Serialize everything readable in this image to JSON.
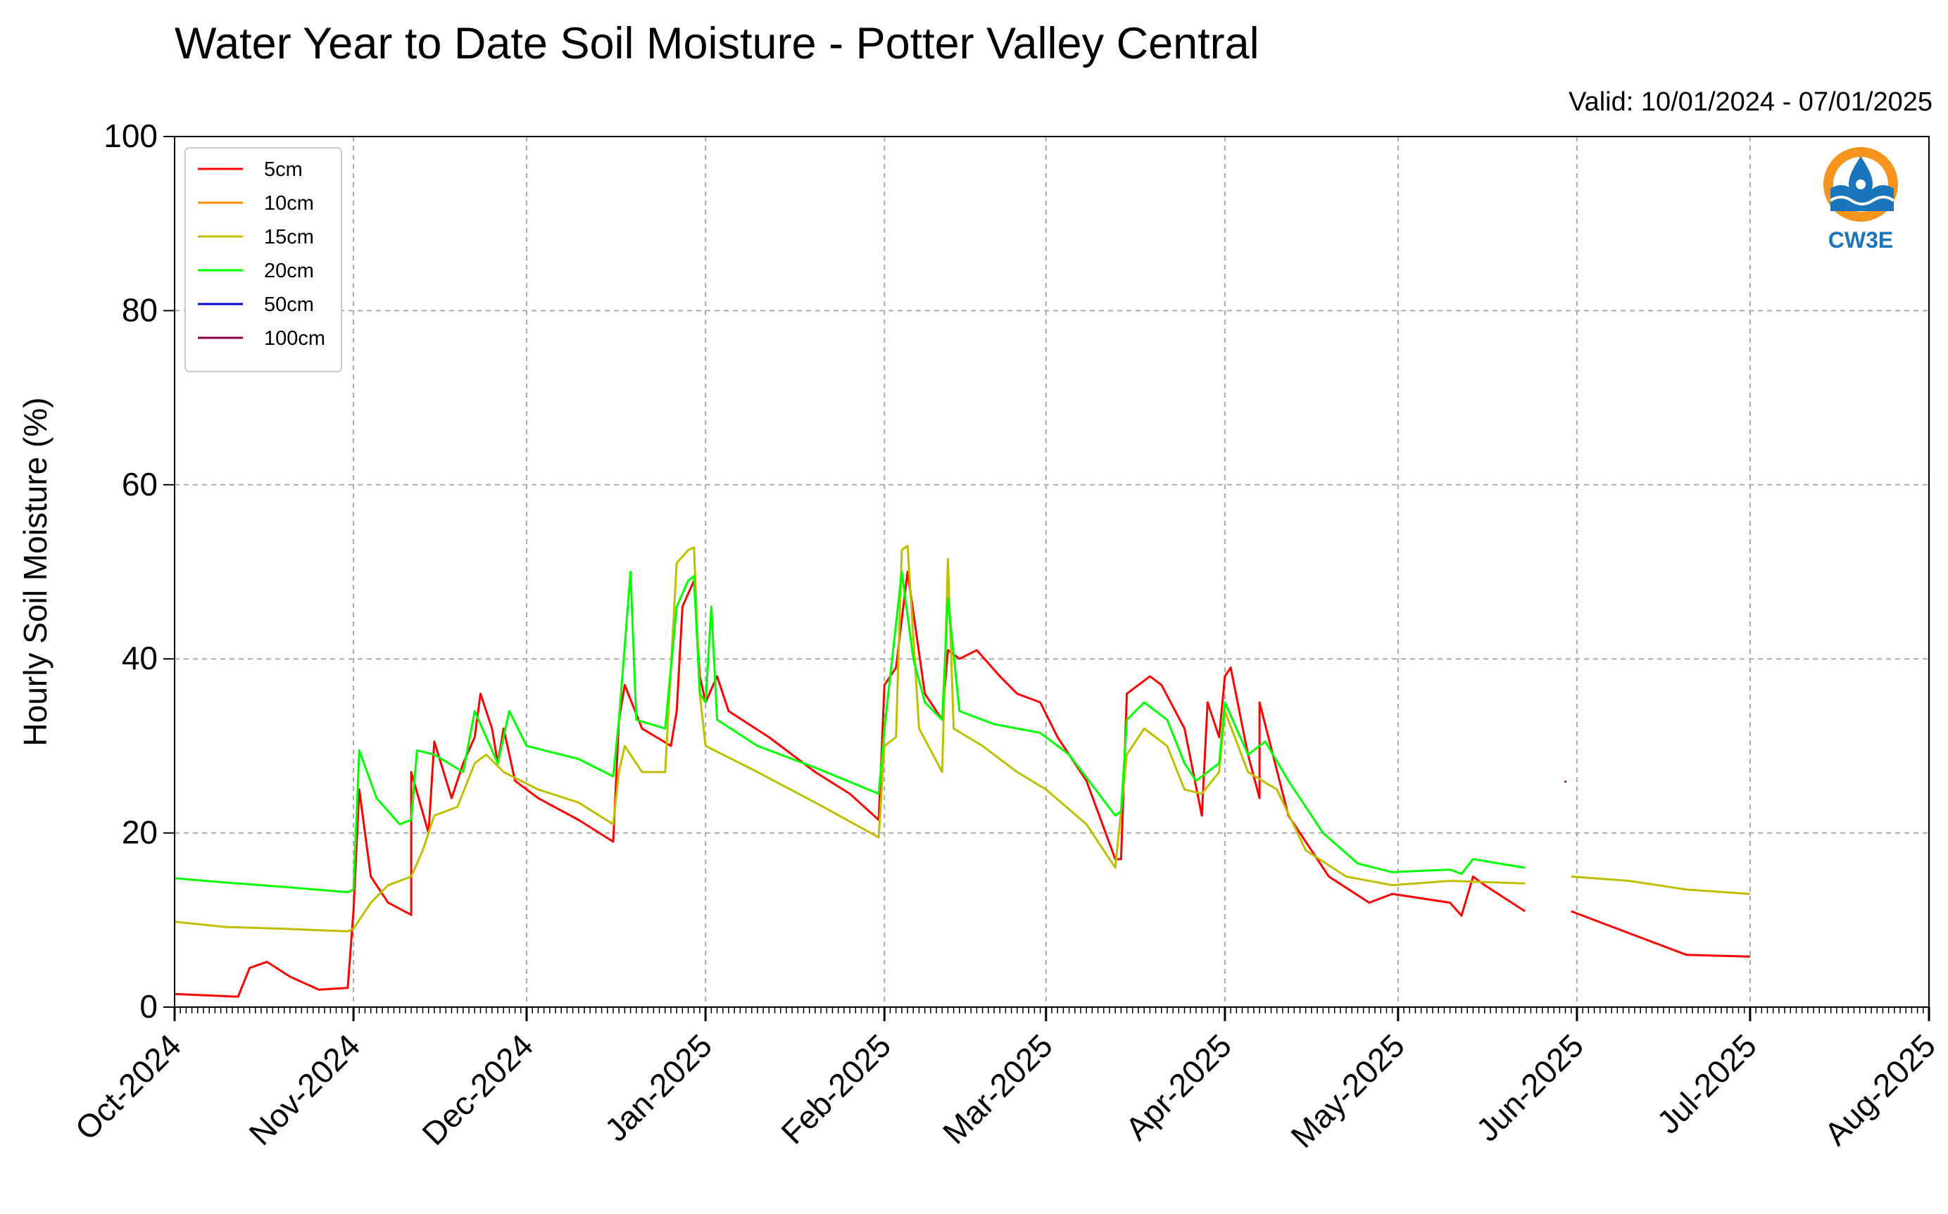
{
  "chart_data": {
    "type": "line",
    "title": "Water Year to Date Soil Moisture - Potter Valley Central",
    "subtitle": "Valid: 10/01/2024 - 07/01/2025",
    "xlabel": "",
    "ylabel": "Hourly Soil Moisture (%)",
    "ylim": [
      0,
      100
    ],
    "yticks": [
      0,
      20,
      40,
      60,
      80,
      100
    ],
    "xlim": [
      "2024-10-01",
      "2025-08-01"
    ],
    "xticks": [
      {
        "date": "2024-10-01",
        "label": "Oct-2024"
      },
      {
        "date": "2024-11-01",
        "label": "Nov-2024"
      },
      {
        "date": "2024-12-01",
        "label": "Dec-2024"
      },
      {
        "date": "2025-01-01",
        "label": "Jan-2025"
      },
      {
        "date": "2025-02-01",
        "label": "Feb-2025"
      },
      {
        "date": "2025-03-01",
        "label": "Mar-2025"
      },
      {
        "date": "2025-04-01",
        "label": "Apr-2025"
      },
      {
        "date": "2025-05-01",
        "label": "May-2025"
      },
      {
        "date": "2025-06-01",
        "label": "Jun-2025"
      },
      {
        "date": "2025-07-01",
        "label": "Jul-2025"
      },
      {
        "date": "2025-08-01",
        "label": "Aug-2025"
      }
    ],
    "grid": true,
    "legend_position": "top-left",
    "series": [
      {
        "name": "5cm",
        "color": "#ff0000",
        "points": [
          [
            "2024-10-01",
            1.5
          ],
          [
            "2024-10-12",
            1.2
          ],
          [
            "2024-10-14",
            4.5
          ],
          [
            "2024-10-17",
            5.2
          ],
          [
            "2024-10-21",
            3.5
          ],
          [
            "2024-10-26",
            2.0
          ],
          [
            "2024-10-31",
            2.2
          ],
          [
            "2024-11-01",
            11.0
          ],
          [
            "2024-11-02",
            25.0
          ],
          [
            "2024-11-04",
            15.0
          ],
          [
            "2024-11-07",
            12.0
          ],
          [
            "2024-11-11",
            10.6
          ],
          [
            "2024-11-11",
            27.0
          ],
          [
            "2024-11-14",
            20.0
          ],
          [
            "2024-11-15",
            30.5
          ],
          [
            "2024-11-18",
            24.0
          ],
          [
            "2024-11-20",
            28.0
          ],
          [
            "2024-11-22",
            31.0
          ],
          [
            "2024-11-23",
            36.0
          ],
          [
            "2024-11-25",
            32.0
          ],
          [
            "2024-11-26",
            28.0
          ],
          [
            "2024-11-27",
            32.0
          ],
          [
            "2024-11-29",
            26.0
          ],
          [
            "2024-12-03",
            24.0
          ],
          [
            "2024-12-10",
            21.5
          ],
          [
            "2024-12-16",
            19.0
          ],
          [
            "2024-12-17",
            33.0
          ],
          [
            "2024-12-18",
            37.0
          ],
          [
            "2024-12-21",
            32.0
          ],
          [
            "2024-12-26",
            30.0
          ],
          [
            "2024-12-27",
            34.0
          ],
          [
            "2024-12-28",
            46.0
          ],
          [
            "2024-12-30",
            49.0
          ],
          [
            "2024-12-31",
            38.0
          ],
          [
            "2025-01-01",
            35.0
          ],
          [
            "2025-01-03",
            38.0
          ],
          [
            "2025-01-05",
            34.0
          ],
          [
            "2025-01-12",
            31.0
          ],
          [
            "2025-01-20",
            27.0
          ],
          [
            "2025-01-26",
            24.5
          ],
          [
            "2025-01-31",
            21.5
          ],
          [
            "2025-02-01",
            37.0
          ],
          [
            "2025-02-03",
            39.0
          ],
          [
            "2025-02-05",
            50.0
          ],
          [
            "2025-02-08",
            36.0
          ],
          [
            "2025-02-11",
            33.0
          ],
          [
            "2025-02-12",
            41.0
          ],
          [
            "2025-02-14",
            40.0
          ],
          [
            "2025-02-17",
            41.0
          ],
          [
            "2025-02-21",
            38.0
          ],
          [
            "2025-02-24",
            36.0
          ],
          [
            "2025-02-28",
            35.0
          ],
          [
            "2025-03-03",
            31.0
          ],
          [
            "2025-03-08",
            26.0
          ],
          [
            "2025-03-13",
            17.0
          ],
          [
            "2025-03-14",
            17.0
          ],
          [
            "2025-03-15",
            36.0
          ],
          [
            "2025-03-17",
            37.0
          ],
          [
            "2025-03-19",
            38.0
          ],
          [
            "2025-03-21",
            37.0
          ],
          [
            "2025-03-25",
            32.0
          ],
          [
            "2025-03-28",
            22.0
          ],
          [
            "2025-03-29",
            35.0
          ],
          [
            "2025-03-31",
            31.0
          ],
          [
            "2025-04-01",
            38.0
          ],
          [
            "2025-04-02",
            39.0
          ],
          [
            "2025-04-05",
            29.0
          ],
          [
            "2025-04-07",
            24.0
          ],
          [
            "2025-04-07",
            35.0
          ],
          [
            "2025-04-12",
            22.0
          ],
          [
            "2025-04-19",
            15.0
          ],
          [
            "2025-04-26",
            12.0
          ],
          [
            "2025-04-30",
            13.0
          ],
          [
            "2025-05-10",
            12.0
          ],
          [
            "2025-05-12",
            10.5
          ],
          [
            "2025-05-14",
            15.0
          ],
          [
            "2025-05-16",
            14.0
          ],
          [
            "2025-05-23",
            11.0
          ],
          null,
          [
            "2025-05-31",
            11.0
          ],
          [
            "2025-06-10",
            8.5
          ],
          [
            "2025-06-20",
            6.0
          ],
          [
            "2025-07-01",
            5.8
          ]
        ]
      },
      {
        "name": "10cm",
        "color": "#ff8c00",
        "points": []
      },
      {
        "name": "15cm",
        "color": "#bfbf00",
        "points": [
          [
            "2024-10-01",
            9.8
          ],
          [
            "2024-10-10",
            9.2
          ],
          [
            "2024-10-20",
            9.0
          ],
          [
            "2024-10-31",
            8.7
          ],
          [
            "2024-11-01",
            9.0
          ],
          [
            "2024-11-04",
            12.0
          ],
          [
            "2024-11-07",
            14.0
          ],
          [
            "2024-11-11",
            15.0
          ],
          [
            "2024-11-13",
            18.0
          ],
          [
            "2024-11-15",
            22.0
          ],
          [
            "2024-11-19",
            23.0
          ],
          [
            "2024-11-22",
            28.0
          ],
          [
            "2024-11-24",
            29.0
          ],
          [
            "2024-11-27",
            27.0
          ],
          [
            "2024-12-03",
            25.0
          ],
          [
            "2024-12-10",
            23.5
          ],
          [
            "2024-12-16",
            21.0
          ],
          [
            "2024-12-17",
            27.0
          ],
          [
            "2024-12-18",
            30.0
          ],
          [
            "2024-12-21",
            27.0
          ],
          [
            "2024-12-25",
            27.0
          ],
          [
            "2024-12-27",
            51.0
          ],
          [
            "2024-12-29",
            52.5
          ],
          [
            "2024-12-30",
            52.8
          ],
          [
            "2024-12-31",
            36.0
          ],
          [
            "2025-01-01",
            30.0
          ],
          [
            "2025-01-10",
            27.0
          ],
          [
            "2025-01-20",
            23.5
          ],
          [
            "2025-01-31",
            19.5
          ],
          [
            "2025-02-01",
            30.0
          ],
          [
            "2025-02-03",
            31.0
          ],
          [
            "2025-02-04",
            52.5
          ],
          [
            "2025-02-05",
            53.0
          ],
          [
            "2025-02-07",
            32.0
          ],
          [
            "2025-02-11",
            27.0
          ],
          [
            "2025-02-12",
            51.5
          ],
          [
            "2025-02-13",
            32.0
          ],
          [
            "2025-02-18",
            30.0
          ],
          [
            "2025-02-24",
            27.0
          ],
          [
            "2025-03-01",
            25.0
          ],
          [
            "2025-03-08",
            21.0
          ],
          [
            "2025-03-13",
            16.0
          ],
          [
            "2025-03-15",
            29.0
          ],
          [
            "2025-03-18",
            32.0
          ],
          [
            "2025-03-22",
            30.0
          ],
          [
            "2025-03-25",
            25.0
          ],
          [
            "2025-03-28",
            24.5
          ],
          [
            "2025-03-31",
            27.0
          ],
          [
            "2025-04-01",
            34.0
          ],
          [
            "2025-04-05",
            27.0
          ],
          [
            "2025-04-10",
            25.0
          ],
          [
            "2025-04-15",
            18.0
          ],
          [
            "2025-04-22",
            15.0
          ],
          [
            "2025-04-30",
            14.0
          ],
          [
            "2025-05-10",
            14.5
          ],
          [
            "2025-05-23",
            14.2
          ],
          null,
          [
            "2025-05-31",
            15.0
          ],
          [
            "2025-06-10",
            14.5
          ],
          [
            "2025-06-20",
            13.5
          ],
          [
            "2025-07-01",
            13.0
          ]
        ]
      },
      {
        "name": "20cm",
        "color": "#00ff00",
        "points": [
          [
            "2024-10-01",
            14.8
          ],
          [
            "2024-10-10",
            14.3
          ],
          [
            "2024-10-20",
            13.8
          ],
          [
            "2024-10-31",
            13.2
          ],
          [
            "2024-11-01",
            13.5
          ],
          [
            "2024-11-02",
            29.5
          ],
          [
            "2024-11-05",
            24.0
          ],
          [
            "2024-11-09",
            21.0
          ],
          [
            "2024-11-11",
            21.5
          ],
          [
            "2024-11-12",
            29.5
          ],
          [
            "2024-11-15",
            29.0
          ],
          [
            "2024-11-20",
            27.0
          ],
          [
            "2024-11-22",
            34.0
          ],
          [
            "2024-11-26",
            28.0
          ],
          [
            "2024-11-28",
            34.0
          ],
          [
            "2024-12-01",
            30.0
          ],
          [
            "2024-12-10",
            28.5
          ],
          [
            "2024-12-16",
            26.5
          ],
          [
            "2024-12-17",
            33.0
          ],
          [
            "2024-12-19",
            50.0
          ],
          [
            "2024-12-20",
            33.0
          ],
          [
            "2024-12-25",
            32.0
          ],
          [
            "2024-12-27",
            46.0
          ],
          [
            "2024-12-29",
            49.0
          ],
          [
            "2024-12-30",
            49.5
          ],
          [
            "2024-12-31",
            36.0
          ],
          [
            "2025-01-01",
            35.0
          ],
          [
            "2025-01-02",
            46.0
          ],
          [
            "2025-01-03",
            33.0
          ],
          [
            "2025-01-10",
            30.0
          ],
          [
            "2025-01-20",
            27.5
          ],
          [
            "2025-01-31",
            24.5
          ],
          [
            "2025-02-01",
            32.0
          ],
          [
            "2025-02-04",
            50.0
          ],
          [
            "2025-02-06",
            40.0
          ],
          [
            "2025-02-08",
            35.0
          ],
          [
            "2025-02-11",
            33.0
          ],
          [
            "2025-02-12",
            47.0
          ],
          [
            "2025-02-14",
            34.0
          ],
          [
            "2025-02-20",
            32.5
          ],
          [
            "2025-02-28",
            31.5
          ],
          [
            "2025-03-05",
            29.0
          ],
          [
            "2025-03-13",
            22.0
          ],
          [
            "2025-03-14",
            22.5
          ],
          [
            "2025-03-15",
            33.0
          ],
          [
            "2025-03-18",
            35.0
          ],
          [
            "2025-03-22",
            33.0
          ],
          [
            "2025-03-25",
            28.0
          ],
          [
            "2025-03-27",
            26.0
          ],
          [
            "2025-03-31",
            28.0
          ],
          [
            "2025-04-01",
            35.0
          ],
          [
            "2025-04-05",
            29.0
          ],
          [
            "2025-04-08",
            30.5
          ],
          [
            "2025-04-12",
            26.0
          ],
          [
            "2025-04-18",
            20.0
          ],
          [
            "2025-04-24",
            16.5
          ],
          [
            "2025-04-30",
            15.5
          ],
          [
            "2025-05-10",
            15.8
          ],
          [
            "2025-05-12",
            15.3
          ],
          [
            "2025-05-14",
            17.0
          ],
          [
            "2025-05-23",
            16.0
          ]
        ]
      },
      {
        "name": "50cm",
        "color": "#0000cd",
        "points": []
      },
      {
        "name": "100cm",
        "color": "#8b0045",
        "points": [
          [
            "2025-05-30",
            26.0
          ],
          [
            "2025-05-30",
            25.8
          ]
        ]
      }
    ]
  },
  "logo": {
    "text": "CW3E",
    "ring_color": "#f7941d",
    "wave_color": "#1b75bb"
  }
}
